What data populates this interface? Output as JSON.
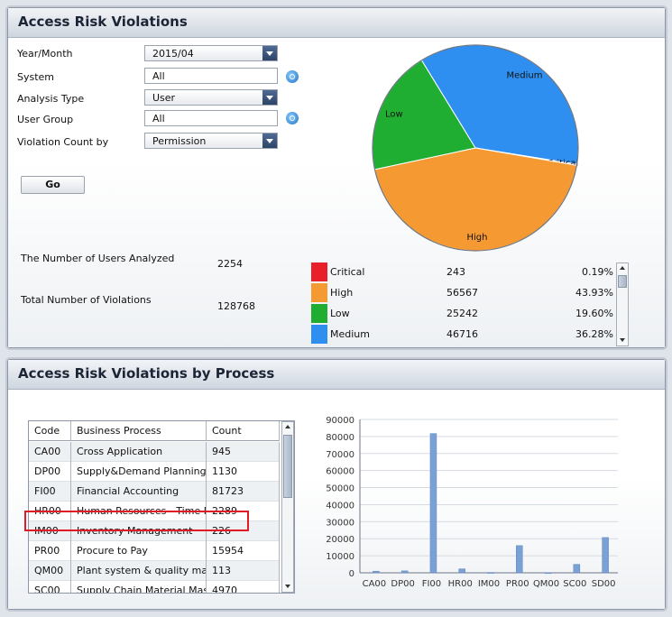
{
  "panel1": {
    "title": "Access Risk Violations",
    "form": {
      "year_month_label": "Year/Month",
      "year_month_value": "2015/04",
      "system_label": "System",
      "system_value": "All",
      "analysis_type_label": "Analysis Type",
      "analysis_type_value": "User",
      "user_group_label": "User Group",
      "user_group_value": "All",
      "violation_count_label": "Violation Count by",
      "violation_count_value": "Permission",
      "go_label": "Go"
    },
    "stats": {
      "users_analyzed_label": "The Number of Users Analyzed",
      "users_analyzed_value": "2254",
      "total_violations_label": "Total Number of Violations",
      "total_violations_value": "128768"
    },
    "chart_data": {
      "type": "pie",
      "slices": [
        {
          "label": "Critical",
          "value": 243,
          "percent": "0.19%",
          "color": "#e8202a"
        },
        {
          "label": "High",
          "value": 56567,
          "percent": "43.93%",
          "color": "#f59a32"
        },
        {
          "label": "Low",
          "value": 25242,
          "percent": "19.60%",
          "color": "#1fae32"
        },
        {
          "label": "Medium",
          "value": 46716,
          "percent": "36.28%",
          "color": "#2e8ff0"
        }
      ]
    }
  },
  "panel2": {
    "title": "Access Risk Violations by Process",
    "table": {
      "headers": [
        "Code",
        "Business Process",
        "Count"
      ],
      "rows": [
        [
          "CA00",
          "Cross Application",
          "945"
        ],
        [
          "DP00",
          "Supply&Demand Planning",
          "1130"
        ],
        [
          "FI00",
          "Financial Accounting",
          "81723"
        ],
        [
          "HR00",
          "Human Resources - Time Management",
          "2289"
        ],
        [
          "IM00",
          "Inventory Management",
          "226"
        ],
        [
          "PR00",
          "Procure to Pay",
          "15954"
        ],
        [
          "QM00",
          "Plant system & quality management",
          "113"
        ],
        [
          "SC00",
          "Supply Chain Material Master",
          "4970"
        ]
      ]
    },
    "chart_data": {
      "type": "bar",
      "categories": [
        "CA00",
        "DP00",
        "FI00",
        "HR00",
        "IM00",
        "PR00",
        "QM00",
        "SC00",
        "SD00"
      ],
      "values": [
        945,
        1130,
        81723,
        2289,
        226,
        15954,
        113,
        4970,
        20700
      ],
      "ylim": [
        0,
        90000
      ],
      "yticks": [
        "0",
        "10000",
        "20000",
        "30000",
        "40000",
        "50000",
        "60000",
        "70000",
        "80000",
        "90000"
      ],
      "grid": true,
      "bar_color": "#7aa1d6"
    }
  }
}
